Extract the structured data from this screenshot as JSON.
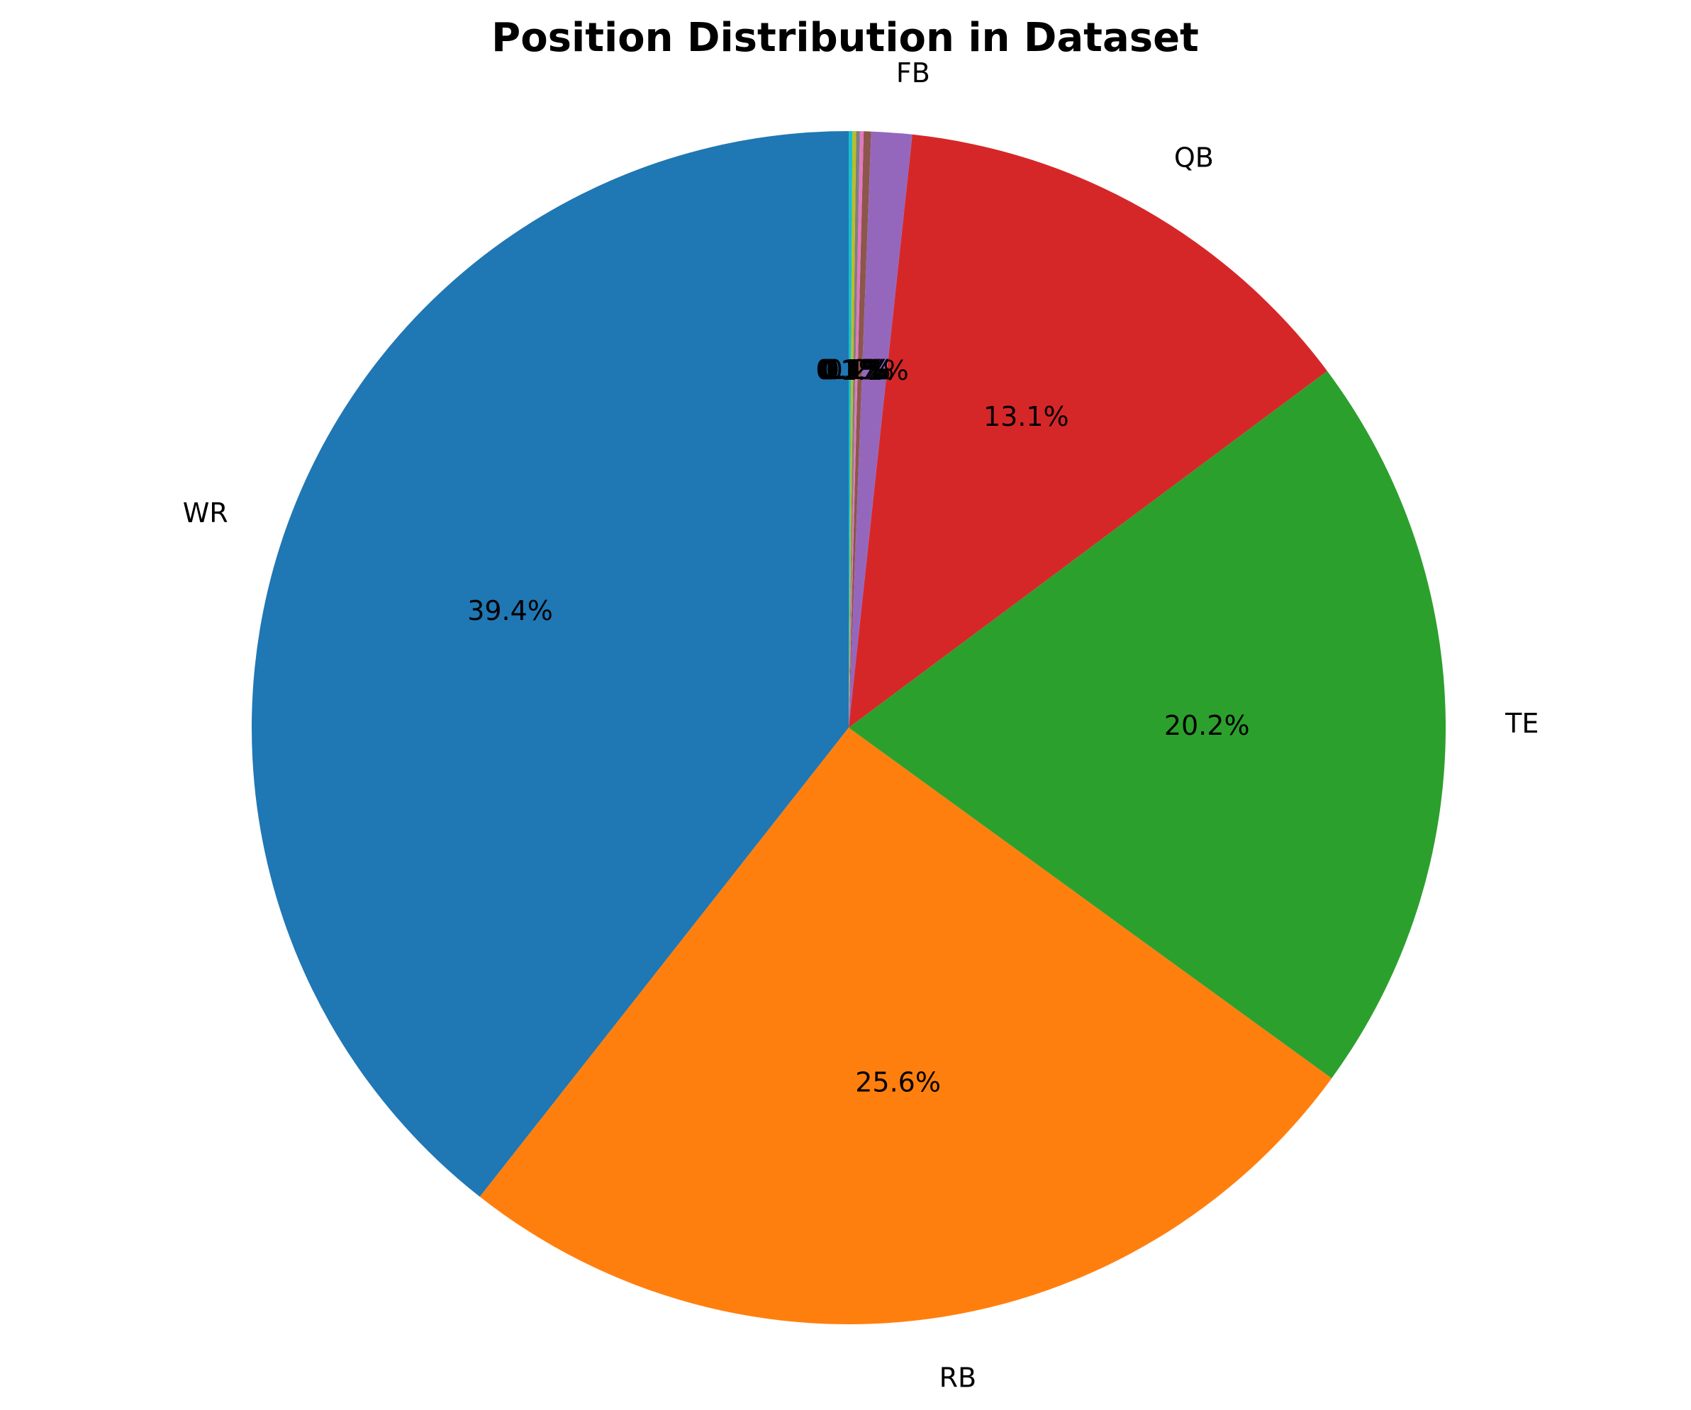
{
  "chart_data": {
    "type": "pie",
    "title": "Position Distribution in Dataset",
    "start_angle": 90,
    "direction": "counterclockwise",
    "slices": [
      {
        "label": "WR",
        "value": 39.4,
        "pct_label": "39.4%",
        "color": "#1f77b4"
      },
      {
        "label": "RB",
        "value": 25.6,
        "pct_label": "25.6%",
        "color": "#ff7f0e"
      },
      {
        "label": "TE",
        "value": 20.2,
        "pct_label": "20.2%",
        "color": "#2ca02c"
      },
      {
        "label": "QB",
        "value": 13.1,
        "pct_label": "13.1%",
        "color": "#d62728"
      },
      {
        "label": "FB",
        "value": 1.1,
        "pct_label": "1.1%",
        "color": "#9467bd"
      },
      {
        "label": "",
        "value": 0.2,
        "pct_label": "0.2%",
        "color": "#8c564b"
      },
      {
        "label": "",
        "value": 0.1,
        "pct_label": "0.1%",
        "color": "#e377c2"
      },
      {
        "label": "",
        "value": 0.1,
        "pct_label": "0.1%",
        "color": "#7f7f7f"
      },
      {
        "label": "",
        "value": 0.1,
        "pct_label": "0.1%",
        "color": "#bcbd22"
      },
      {
        "label": "",
        "value": 0.1,
        "pct_label": "0.1%",
        "color": "#17becf"
      }
    ]
  }
}
